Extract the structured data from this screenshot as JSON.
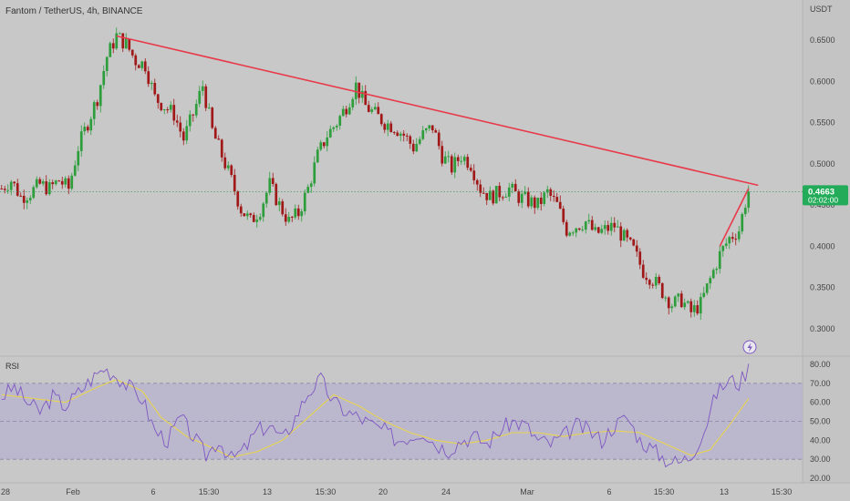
{
  "header": {
    "title": "Fantom / TetherUS, 4h, BINANCE"
  },
  "price_axis": {
    "currency": "USDT",
    "ticks": [
      "0.6500",
      "0.6000",
      "0.5500",
      "0.5000",
      "0.4500",
      "0.4000",
      "0.3500",
      "0.3000"
    ],
    "tick_values": [
      0.65,
      0.6,
      0.55,
      0.5,
      0.45,
      0.4,
      0.35,
      0.3
    ]
  },
  "current_price": {
    "value": "0.4663",
    "countdown": "02:02:00",
    "color": "#22ab58"
  },
  "rsi_panel": {
    "label": "RSI",
    "ticks": [
      "80.00",
      "70.00",
      "60.00",
      "50.00",
      "40.00",
      "30.00",
      "20.00"
    ],
    "tick_values": [
      80,
      70,
      60,
      50,
      40,
      30,
      20
    ],
    "band_color": "#b8b4d0",
    "rsi_color": "#7e57c2",
    "ma_color": "#e8d44d"
  },
  "time_axis": {
    "labels": [
      "28",
      "Feb",
      "6",
      "15:30",
      "13",
      "15:30",
      "20",
      "24",
      "Mar",
      "6",
      "15:30",
      "13",
      "15:30"
    ]
  },
  "chart_data": {
    "type": "candlestick",
    "title": "Fantom / TetherUS, 4h, BINANCE",
    "yunit": "USDT",
    "ylim": [
      0.28,
      0.67
    ],
    "up_color": "#2e9e3c",
    "down_color": "#a01818",
    "last_price": 0.4663,
    "price_path": [
      [
        0,
        0.47
      ],
      [
        3,
        0.48
      ],
      [
        6,
        0.46
      ],
      [
        9,
        0.465
      ],
      [
        12,
        0.475
      ],
      [
        15,
        0.47
      ],
      [
        18,
        0.48
      ],
      [
        21,
        0.47
      ],
      [
        24,
        0.52
      ],
      [
        27,
        0.55
      ],
      [
        30,
        0.58
      ],
      [
        33,
        0.63
      ],
      [
        36,
        0.655
      ],
      [
        39,
        0.645
      ],
      [
        42,
        0.625
      ],
      [
        45,
        0.62
      ],
      [
        48,
        0.58
      ],
      [
        51,
        0.57
      ],
      [
        54,
        0.56
      ],
      [
        57,
        0.53
      ],
      [
        60,
        0.56
      ],
      [
        63,
        0.595
      ],
      [
        66,
        0.54
      ],
      [
        69,
        0.51
      ],
      [
        72,
        0.48
      ],
      [
        75,
        0.445
      ],
      [
        78,
        0.43
      ],
      [
        81,
        0.445
      ],
      [
        84,
        0.475
      ],
      [
        87,
        0.45
      ],
      [
        90,
        0.43
      ],
      [
        93,
        0.44
      ],
      [
        96,
        0.47
      ],
      [
        99,
        0.51
      ],
      [
        102,
        0.535
      ],
      [
        105,
        0.55
      ],
      [
        108,
        0.57
      ],
      [
        111,
        0.595
      ],
      [
        114,
        0.57
      ],
      [
        117,
        0.56
      ],
      [
        120,
        0.55
      ],
      [
        123,
        0.545
      ],
      [
        126,
        0.535
      ],
      [
        129,
        0.52
      ],
      [
        132,
        0.535
      ],
      [
        135,
        0.545
      ],
      [
        138,
        0.51
      ],
      [
        141,
        0.495
      ],
      [
        144,
        0.51
      ],
      [
        147,
        0.5
      ],
      [
        150,
        0.47
      ],
      [
        153,
        0.46
      ],
      [
        156,
        0.465
      ],
      [
        159,
        0.47
      ],
      [
        162,
        0.46
      ],
      [
        165,
        0.455
      ],
      [
        168,
        0.45
      ],
      [
        171,
        0.465
      ],
      [
        174,
        0.45
      ],
      [
        177,
        0.42
      ],
      [
        180,
        0.425
      ],
      [
        183,
        0.43
      ],
      [
        186,
        0.415
      ],
      [
        189,
        0.42
      ],
      [
        192,
        0.425
      ],
      [
        195,
        0.41
      ],
      [
        198,
        0.395
      ],
      [
        201,
        0.37
      ],
      [
        204,
        0.36
      ],
      [
        207,
        0.345
      ],
      [
        210,
        0.33
      ],
      [
        213,
        0.335
      ],
      [
        216,
        0.32
      ],
      [
        219,
        0.33
      ],
      [
        222,
        0.36
      ],
      [
        225,
        0.39
      ],
      [
        228,
        0.41
      ],
      [
        231,
        0.42
      ],
      [
        234,
        0.47
      ]
    ],
    "trendlines": [
      {
        "from": [
          36,
          0.655
        ],
        "to": [
          237,
          0.474
        ],
        "color": "#e83a4a"
      },
      {
        "from": [
          225,
          0.4
        ],
        "to": [
          234,
          0.47
        ],
        "color": "#e83a4a"
      }
    ],
    "rsi": {
      "ylim": [
        18,
        85
      ],
      "band": [
        30,
        70
      ],
      "midline": 50,
      "values": [
        [
          0,
          63
        ],
        [
          4,
          68
        ],
        [
          8,
          60
        ],
        [
          12,
          55
        ],
        [
          16,
          63
        ],
        [
          20,
          58
        ],
        [
          24,
          65
        ],
        [
          28,
          72
        ],
        [
          32,
          78
        ],
        [
          36,
          74
        ],
        [
          40,
          68
        ],
        [
          44,
          62
        ],
        [
          48,
          45
        ],
        [
          52,
          40
        ],
        [
          56,
          52
        ],
        [
          60,
          42
        ],
        [
          64,
          32
        ],
        [
          68,
          40
        ],
        [
          72,
          30
        ],
        [
          76,
          35
        ],
        [
          80,
          45
        ],
        [
          84,
          48
        ],
        [
          88,
          40
        ],
        [
          92,
          52
        ],
        [
          96,
          65
        ],
        [
          100,
          72
        ],
        [
          104,
          60
        ],
        [
          108,
          55
        ],
        [
          112,
          52
        ],
        [
          116,
          48
        ],
        [
          120,
          45
        ],
        [
          124,
          40
        ],
        [
          128,
          42
        ],
        [
          132,
          45
        ],
        [
          136,
          38
        ],
        [
          140,
          35
        ],
        [
          144,
          40
        ],
        [
          148,
          42
        ],
        [
          152,
          38
        ],
        [
          156,
          45
        ],
        [
          160,
          50
        ],
        [
          164,
          48
        ],
        [
          168,
          40
        ],
        [
          172,
          38
        ],
        [
          176,
          42
        ],
        [
          180,
          48
        ],
        [
          184,
          45
        ],
        [
          188,
          40
        ],
        [
          192,
          48
        ],
        [
          196,
          52
        ],
        [
          200,
          40
        ],
        [
          204,
          35
        ],
        [
          208,
          30
        ],
        [
          212,
          28
        ],
        [
          216,
          32
        ],
        [
          220,
          45
        ],
        [
          224,
          65
        ],
        [
          228,
          72
        ],
        [
          231,
          70
        ],
        [
          234,
          78
        ]
      ],
      "ma_values": [
        [
          0,
          64
        ],
        [
          10,
          62
        ],
        [
          20,
          60
        ],
        [
          30,
          68
        ],
        [
          36,
          72
        ],
        [
          44,
          66
        ],
        [
          50,
          52
        ],
        [
          58,
          42
        ],
        [
          66,
          36
        ],
        [
          72,
          31
        ],
        [
          80,
          34
        ],
        [
          88,
          40
        ],
        [
          96,
          52
        ],
        [
          104,
          64
        ],
        [
          112,
          58
        ],
        [
          120,
          50
        ],
        [
          128,
          44
        ],
        [
          136,
          40
        ],
        [
          144,
          38
        ],
        [
          152,
          40
        ],
        [
          160,
          44
        ],
        [
          168,
          44
        ],
        [
          176,
          42
        ],
        [
          184,
          44
        ],
        [
          192,
          45
        ],
        [
          200,
          44
        ],
        [
          208,
          38
        ],
        [
          216,
          32
        ],
        [
          222,
          35
        ],
        [
          228,
          48
        ],
        [
          234,
          62
        ]
      ]
    }
  }
}
